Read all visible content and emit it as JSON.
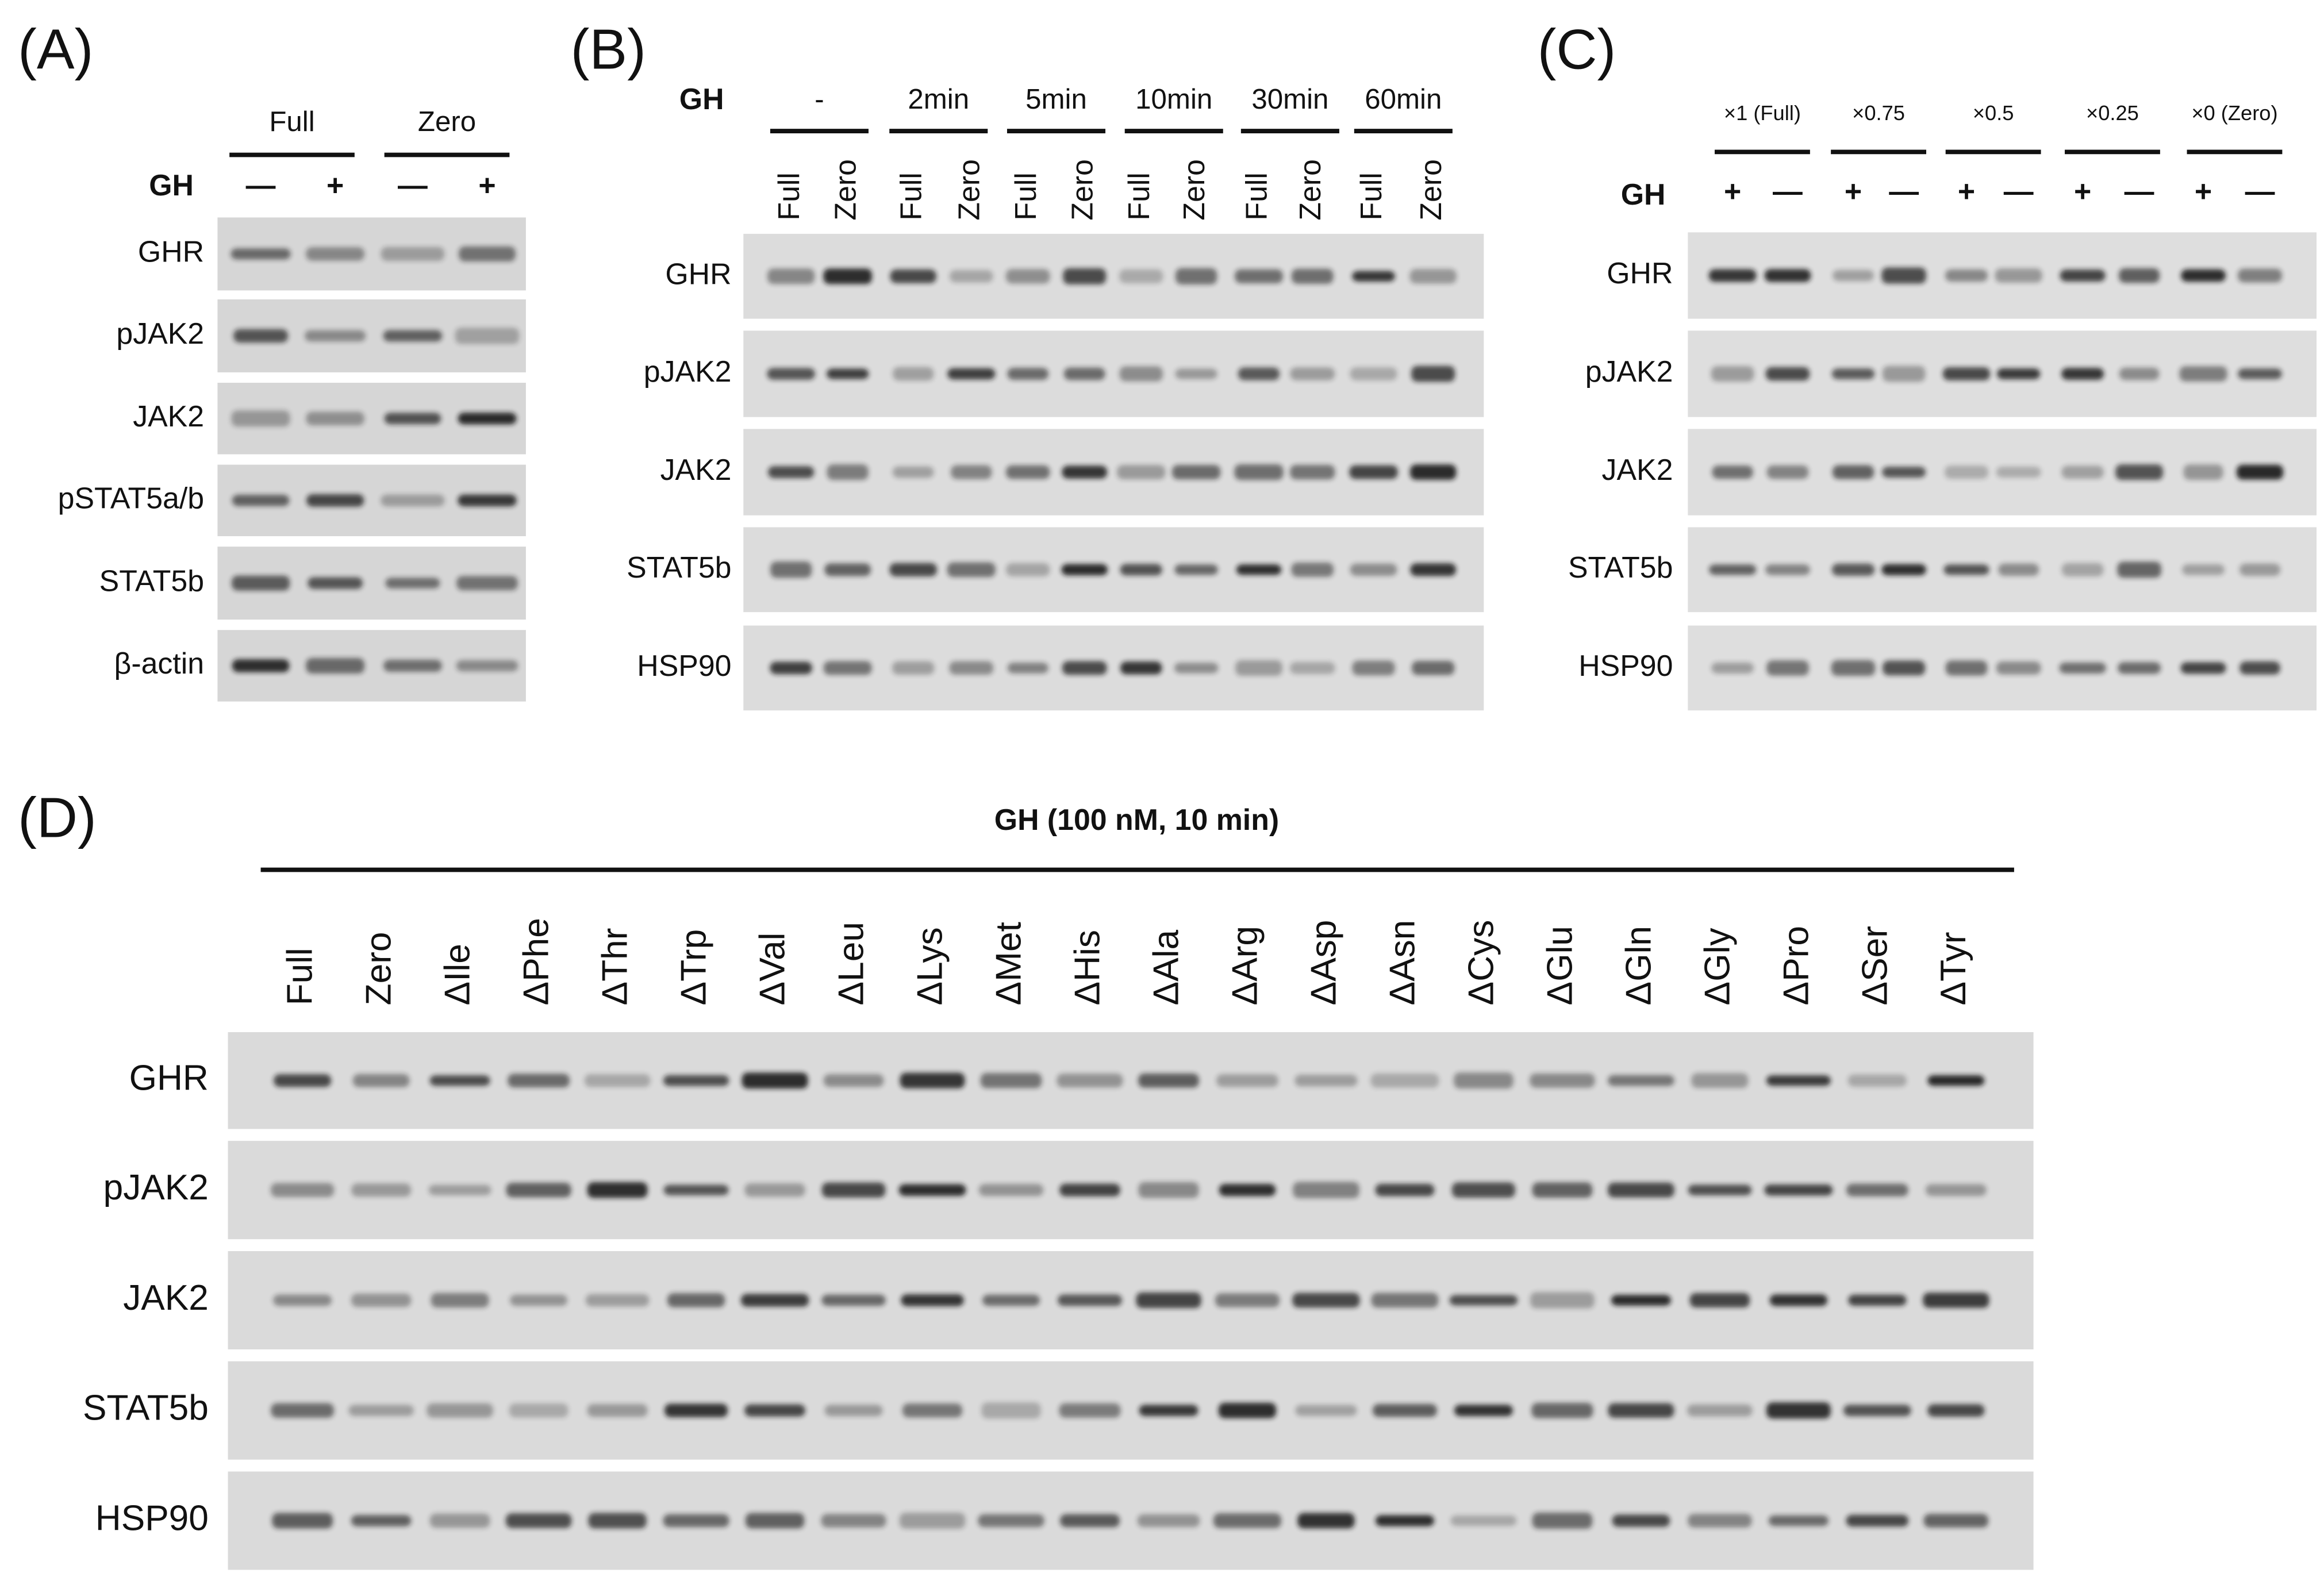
{
  "panels": [
    {
      "label": "(A)",
      "gh_label": "GH",
      "groups": [
        {
          "label": "Full",
          "lanes": [
            "—",
            "+"
          ]
        },
        {
          "label": "Zero",
          "lanes": [
            "—",
            "+"
          ]
        }
      ],
      "rows": [
        "GHR",
        "pJAK2",
        "JAK2",
        "pSTAT5a/b",
        "STAT5b",
        "β-actin"
      ]
    },
    {
      "label": "(B)",
      "gh_label": "GH",
      "groups": [
        {
          "label": "-",
          "lanes": [
            "Full",
            "Zero"
          ]
        },
        {
          "label": "2min",
          "lanes": [
            "Full",
            "Zero"
          ]
        },
        {
          "label": "5min",
          "lanes": [
            "Full",
            "Zero"
          ]
        },
        {
          "label": "10min",
          "lanes": [
            "Full",
            "Zero"
          ]
        },
        {
          "label": "30min",
          "lanes": [
            "Full",
            "Zero"
          ]
        },
        {
          "label": "60min",
          "lanes": [
            "Full",
            "Zero"
          ]
        }
      ],
      "rows": [
        "GHR",
        "pJAK2",
        "JAK2",
        "STAT5b",
        "HSP90"
      ]
    },
    {
      "label": "(C)",
      "gh_label": "GH",
      "groups": [
        {
          "label": "×1 (Full)",
          "lanes": [
            "+",
            "—"
          ]
        },
        {
          "label": "×0.75",
          "lanes": [
            "+",
            "—"
          ]
        },
        {
          "label": "×0.5",
          "lanes": [
            "+",
            "—"
          ]
        },
        {
          "label": "×0.25",
          "lanes": [
            "+",
            "—"
          ]
        },
        {
          "label": "×0 (Zero)",
          "lanes": [
            "+",
            "—"
          ]
        }
      ],
      "rows": [
        "GHR",
        "pJAK2",
        "JAK2",
        "STAT5b",
        "HSP90"
      ]
    },
    {
      "label": "(D)",
      "treatment": "GH (100 nM, 10 min)",
      "lanes": [
        "Full",
        "Zero",
        "ΔIle",
        "ΔPhe",
        "ΔThr",
        "ΔTrp",
        "ΔVal",
        "ΔLeu",
        "ΔLys",
        "ΔMet",
        "ΔHis",
        "ΔAla",
        "ΔArg",
        "ΔAsp",
        "ΔAsn",
        "ΔCys",
        "ΔGlu",
        "ΔGln",
        "ΔGly",
        "ΔPro",
        "ΔSer",
        "ΔTyr"
      ],
      "rows": [
        "GHR",
        "pJAK2",
        "JAK2",
        "STAT5b",
        "HSP90"
      ]
    }
  ]
}
